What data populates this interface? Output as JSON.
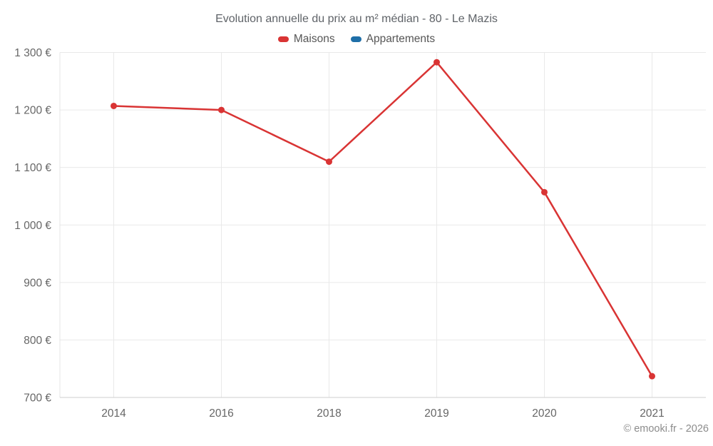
{
  "page": {
    "title": "Evolution annuelle du prix au m² médian - 80 - Le Mazis",
    "footer": "© emooki.fr - 2026"
  },
  "legend": {
    "items": [
      {
        "label": "Maisons",
        "color": "#d93434"
      },
      {
        "label": "Appartements",
        "color": "#1f6fa8"
      }
    ]
  },
  "chart_data": {
    "type": "line",
    "title": "Evolution annuelle du prix au m² médian - 80 - Le Mazis",
    "categories": [
      "2014",
      "2016",
      "2018",
      "2019",
      "2020",
      "2021"
    ],
    "series": [
      {
        "name": "Maisons",
        "color": "#d93434",
        "values": [
          1207,
          1200,
          1110,
          1283,
          1057,
          737
        ]
      },
      {
        "name": "Appartements",
        "color": "#1f6fa8",
        "values": []
      }
    ],
    "xlabel": "",
    "ylabel": "",
    "ylim": [
      700,
      1300
    ],
    "y_ticks": [
      700,
      800,
      900,
      1000,
      1100,
      1200,
      1300
    ],
    "y_tick_labels": [
      "700 €",
      "800 €",
      "900 €",
      "1 000 €",
      "1 100 €",
      "1 200 €",
      "1 300 €"
    ],
    "grid": true,
    "legend_position": "top",
    "colors": {
      "gridline": "#e9e9e9",
      "axis_line": "#cfcfcf",
      "y_axis_line": "#e4e4e4",
      "tick_label": "#666666",
      "title": "#5f6368",
      "footer": "#8c8c8c"
    }
  }
}
